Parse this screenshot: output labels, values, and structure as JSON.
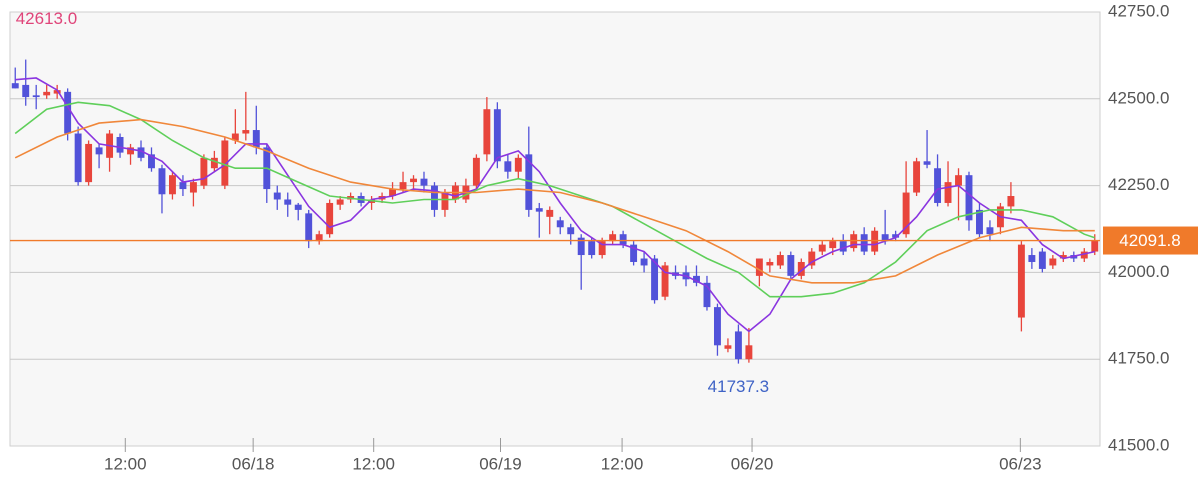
{
  "chart_data": {
    "type": "candlestick",
    "open": [
      42545,
      42540,
      42510,
      42510,
      42515,
      42520,
      42400,
      42260,
      42360,
      42330,
      42390,
      42340,
      42360,
      42340,
      42300,
      42225,
      42260,
      42230,
      42250,
      42300,
      42250,
      42380,
      42400,
      42410,
      42360,
      42230,
      42210,
      42195,
      42170,
      42090,
      42110,
      42195,
      42210,
      42220,
      42200,
      42210,
      42220,
      42240,
      42260,
      42270,
      42250,
      42180,
      42210,
      42210,
      42250,
      42340,
      42470,
      42320,
      42290,
      42340,
      42185,
      42160,
      42150,
      42130,
      42100,
      42090,
      42050,
      42090,
      42110,
      42080,
      42040,
      42040,
      41930,
      42000,
      42000,
      41990,
      41970,
      41900,
      41780,
      41830,
      41750,
      41990,
      42020,
      42020,
      42050,
      41990,
      42020,
      42060,
      42070,
      42090,
      42070,
      42110,
      42060,
      42110,
      42110,
      42110,
      42230,
      42320,
      42300,
      42200,
      42250,
      42280,
      42180,
      42130,
      42130,
      42190,
      41870,
      42050,
      42060,
      42020,
      42040,
      42050,
      42040,
      42060
    ],
    "high": [
      42590,
      42613,
      42540,
      42540,
      42540,
      42530,
      42420,
      42380,
      42370,
      42410,
      42400,
      42370,
      42380,
      42360,
      42310,
      42290,
      42280,
      42270,
      42340,
      42350,
      42390,
      42470,
      42520,
      42480,
      42370,
      42250,
      42230,
      42200,
      42180,
      42120,
      42210,
      42220,
      42230,
      42230,
      42220,
      42230,
      42260,
      42290,
      42280,
      42290,
      42260,
      42240,
      42260,
      42270,
      42340,
      42505,
      42490,
      42340,
      42340,
      42420,
      42200,
      42190,
      42160,
      42140,
      42110,
      42100,
      42100,
      42120,
      42120,
      42090,
      42060,
      42050,
      42030,
      42020,
      42020,
      42020,
      41990,
      41910,
      41810,
      41850,
      41840,
      42040,
      42040,
      42060,
      42060,
      42040,
      42070,
      42090,
      42100,
      42110,
      42120,
      42130,
      42130,
      42180,
      42120,
      42320,
      42330,
      42410,
      42340,
      42320,
      42300,
      42290,
      42200,
      42150,
      42200,
      42260,
      42090,
      42070,
      42070,
      42050,
      42060,
      42060,
      42070,
      42110
    ],
    "low": [
      42530,
      42480,
      42470,
      42500,
      42500,
      42380,
      42250,
      42250,
      42300,
      42290,
      42330,
      42310,
      42320,
      42290,
      42170,
      42210,
      42220,
      42190,
      42240,
      42290,
      42240,
      42370,
      42380,
      42340,
      42200,
      42180,
      42160,
      42150,
      42070,
      42080,
      42100,
      42180,
      42200,
      42190,
      42180,
      42200,
      42210,
      42230,
      42240,
      42230,
      42160,
      42160,
      42200,
      42200,
      42240,
      42320,
      42300,
      42270,
      42270,
      42160,
      42100,
      42110,
      42110,
      42080,
      41950,
      42040,
      42040,
      42080,
      42070,
      42020,
      42000,
      41910,
      41920,
      41980,
      41960,
      41960,
      41890,
      41760,
      41770,
      41737.3,
      41740,
      41960,
      42000,
      42010,
      41980,
      41980,
      42010,
      42050,
      42050,
      42050,
      42060,
      42050,
      42050,
      42080,
      42090,
      42100,
      42220,
      42300,
      42190,
      42190,
      42150,
      42120,
      42100,
      42090,
      42110,
      42170,
      41830,
      42010,
      42000,
      42010,
      42030,
      42030,
      42030,
      42050
    ],
    "close": [
      42530,
      42505,
      42505,
      42520,
      42525,
      42400,
      42260,
      42370,
      42340,
      42400,
      42345,
      42360,
      42330,
      42300,
      42225,
      42280,
      42240,
      42260,
      42330,
      42330,
      42380,
      42400,
      42410,
      42360,
      42240,
      42210,
      42195,
      42180,
      42090,
      42110,
      42200,
      42210,
      42220,
      42200,
      42210,
      42220,
      42240,
      42260,
      42270,
      42250,
      42180,
      42230,
      42250,
      42250,
      42330,
      42470,
      42320,
      42290,
      42330,
      42180,
      42175,
      42180,
      42130,
      42110,
      42050,
      42050,
      42090,
      42110,
      42080,
      42030,
      42020,
      41920,
      42020,
      41990,
      41980,
      41970,
      41900,
      41790,
      41790,
      41750,
      41790,
      42040,
      42030,
      42050,
      41990,
      42030,
      42060,
      42080,
      42090,
      42060,
      42110,
      42060,
      42120,
      42090,
      42100,
      42230,
      42320,
      42310,
      42200,
      42260,
      42280,
      42150,
      42110,
      42110,
      42190,
      42220,
      42080,
      42030,
      42010,
      42040,
      42050,
      42040,
      42060,
      42091.8
    ],
    "up_color": "#e8453c",
    "down_color": "#5152d9",
    "series": [
      {
        "color": "#8a35e0",
        "x": [
          0,
          2,
          4,
          6,
          8,
          12,
          14,
          16,
          18,
          20,
          22,
          24,
          26,
          28,
          30,
          32,
          34,
          36,
          38,
          40,
          42,
          44,
          46,
          48,
          50,
          52,
          54,
          56,
          58,
          60,
          62,
          64,
          66,
          68,
          70,
          72,
          74,
          76,
          78,
          80,
          82,
          84,
          86,
          88,
          90,
          92,
          94,
          96,
          98,
          100,
          103
        ],
        "values": [
          42555,
          42560,
          42525,
          42430,
          42370,
          42350,
          42320,
          42260,
          42270,
          42310,
          42370,
          42370,
          42280,
          42190,
          42130,
          42150,
          42210,
          42220,
          42240,
          42235,
          42220,
          42240,
          42330,
          42350,
          42290,
          42200,
          42120,
          42080,
          42080,
          42060,
          42000,
          41990,
          41960,
          41880,
          41830,
          41880,
          41980,
          42030,
          42060,
          42080,
          42080,
          42100,
          42160,
          42240,
          42250,
          42200,
          42160,
          42150,
          42080,
          42040,
          42060
        ]
      },
      {
        "color": "#5fcf5a",
        "x": [
          0,
          3,
          6,
          9,
          12,
          15,
          18,
          21,
          24,
          27,
          30,
          33,
          36,
          39,
          42,
          45,
          48,
          51,
          54,
          57,
          60,
          63,
          66,
          69,
          72,
          75,
          78,
          81,
          84,
          87,
          90,
          93,
          96,
          99,
          102,
          103
        ],
        "values": [
          42400,
          42470,
          42490,
          42480,
          42440,
          42380,
          42330,
          42300,
          42300,
          42260,
          42220,
          42210,
          42200,
          42210,
          42210,
          42250,
          42270,
          42250,
          42220,
          42190,
          42140,
          42090,
          42040,
          42000,
          41930,
          41930,
          41940,
          41970,
          42030,
          42120,
          42160,
          42180,
          42180,
          42160,
          42110,
          42100
        ]
      },
      {
        "color": "#f0873a",
        "x": [
          0,
          4,
          8,
          12,
          16,
          20,
          24,
          28,
          32,
          36,
          40,
          44,
          48,
          52,
          56,
          60,
          64,
          68,
          72,
          76,
          80,
          84,
          88,
          92,
          96,
          100,
          103
        ],
        "values": [
          42330,
          42390,
          42430,
          42440,
          42420,
          42390,
          42350,
          42300,
          42260,
          42240,
          42230,
          42230,
          42240,
          42230,
          42200,
          42160,
          42120,
          42060,
          41990,
          41970,
          41970,
          41990,
          42050,
          42100,
          42130,
          42120,
          42120
        ]
      }
    ],
    "ylim": [
      41500,
      42750
    ],
    "yticks": [
      {
        "value": 41500,
        "label": "41500.0"
      },
      {
        "value": 41750,
        "label": "41750.0"
      },
      {
        "value": 42000,
        "label": "42000.0"
      },
      {
        "value": 42250,
        "label": "42250.0"
      },
      {
        "value": 42500,
        "label": "42500.0"
      },
      {
        "value": 42750,
        "label": "42750.0"
      }
    ],
    "xlim": [
      -0.5,
      103.5
    ],
    "xticks": [
      {
        "value": 10.5,
        "label": "12:00"
      },
      {
        "value": 22.7,
        "label": "06/18"
      },
      {
        "value": 34.2,
        "label": "12:00"
      },
      {
        "value": 46.3,
        "label": "06/19"
      },
      {
        "value": 57.9,
        "label": "12:00"
      },
      {
        "value": 70.3,
        "label": "06/20"
      },
      {
        "value": 95.9,
        "label": "06/23"
      }
    ],
    "grid": true,
    "high_marker": {
      "value": 42613,
      "label": "42613.0",
      "color": "#e0457a"
    },
    "low_marker": {
      "value": 41737.3,
      "color": "#3f63c6"
    },
    "last_price": {
      "value": 42091.8,
      "color": "#f07a2a"
    }
  }
}
